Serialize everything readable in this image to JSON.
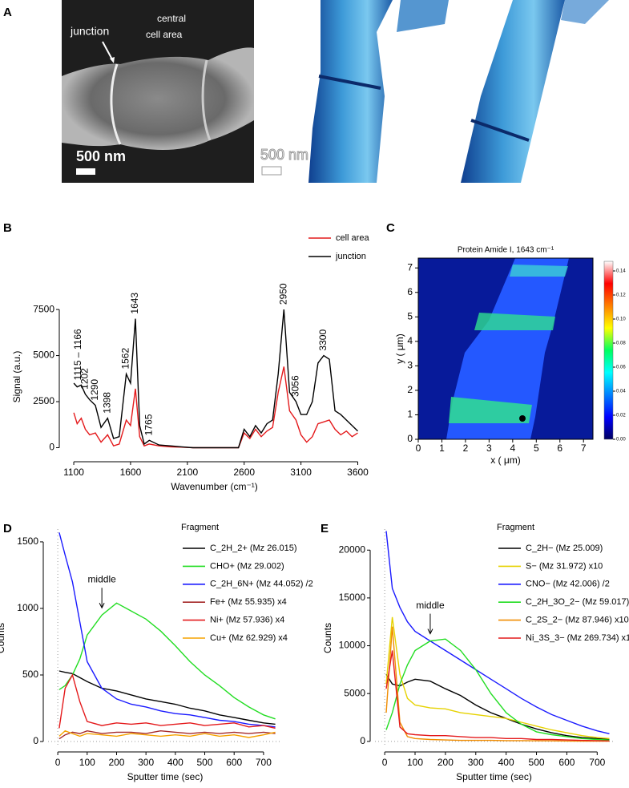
{
  "panel_labels": [
    "A",
    "B",
    "C",
    "D",
    "E"
  ],
  "panel_a": {
    "junction": "junction",
    "central_cell_area": [
      "central",
      "cell area"
    ],
    "scale_bar_1": "500 nm",
    "scale_bar_2": "500 nm"
  },
  "chart_data": [
    {
      "type": "line",
      "xlabel": "Wavenumber (cm⁻¹)",
      "ylabel": "Signal (a.u.)",
      "x": [
        1100,
        1130,
        1166,
        1202,
        1240,
        1290,
        1340,
        1398,
        1450,
        1500,
        1562,
        1600,
        1643,
        1680,
        1720,
        1765,
        1850,
        1950,
        2050,
        2150,
        2200,
        2550,
        2600,
        2650,
        2700,
        2750,
        2800,
        2850,
        2900,
        2950,
        3000,
        3056,
        3100,
        3150,
        3200,
        3250,
        3300,
        3350,
        3400,
        3450,
        3500,
        3550,
        3600
      ],
      "series": [
        {
          "name": "cell area",
          "color": "#e41a1c",
          "values": [
            1900,
            1300,
            1600,
            1000,
            700,
            800,
            300,
            700,
            100,
            200,
            1500,
            1200,
            3200,
            600,
            100,
            200,
            100,
            50,
            30,
            0,
            0,
            0,
            800,
            500,
            1000,
            600,
            900,
            1100,
            3000,
            4400,
            2000,
            1500,
            700,
            300,
            600,
            1300,
            1400,
            1500,
            1000,
            700,
            900,
            600,
            800
          ]
        },
        {
          "name": "junction",
          "color": "#000000",
          "values": [
            3500,
            3300,
            3400,
            2900,
            2600,
            2300,
            1100,
            1600,
            500,
            600,
            4000,
            3500,
            7000,
            1200,
            200,
            400,
            150,
            100,
            50,
            0,
            0,
            0,
            1000,
            600,
            1200,
            800,
            1300,
            1500,
            4000,
            7500,
            3000,
            2500,
            1800,
            1800,
            2500,
            4600,
            5000,
            4800,
            2000,
            1800,
            1500,
            1200,
            900
          ]
        }
      ],
      "xlim": [
        1015,
        3660
      ],
      "ylim": [
        -500,
        8200
      ],
      "xticks": [
        1100,
        1600,
        2100,
        2600,
        3100,
        3600
      ],
      "yticks": [
        0,
        2500,
        5000,
        7500
      ],
      "annotations": [
        {
          "text": "1115 – 1166",
          "x": 1140
        },
        {
          "text": "1202",
          "x": 1202
        },
        {
          "text": "1290",
          "x": 1290
        },
        {
          "text": "1398",
          "x": 1398
        },
        {
          "text": "1562",
          "x": 1562
        },
        {
          "text": "1643",
          "x": 1643
        },
        {
          "text": "1765",
          "x": 1765
        },
        {
          "text": "2950",
          "x": 2950
        },
        {
          "text": "3056",
          "x": 3056
        },
        {
          "text": "3300",
          "x": 3300
        }
      ]
    },
    {
      "type": "heatmap",
      "title": "Protein Amide I, 1643 cm⁻¹",
      "xlabel": "x ( μm)",
      "ylabel": "y ( μm)",
      "xlim": [
        0,
        7.4
      ],
      "ylim": [
        0,
        7.4
      ],
      "xticks": [
        0,
        1,
        2,
        3,
        4,
        5,
        6,
        7
      ],
      "yticks": [
        0,
        1,
        2,
        3,
        4,
        5,
        6,
        7
      ],
      "colormap": [
        "#000060",
        "#0000ff",
        "#0080ff",
        "#00ffff",
        "#00ff60",
        "#ffff00",
        "#ff8000",
        "#ff0000",
        "#ffffff"
      ],
      "clim": [
        0,
        0.148
      ],
      "cticks": [
        {
          "value": 0,
          "label": "0.00"
        },
        {
          "value": 0.02,
          "label": "0.02"
        },
        {
          "value": 0.04,
          "label": "0.04"
        },
        {
          "value": 0.06,
          "label": "0.06"
        },
        {
          "value": 0.08,
          "label": "0.08"
        },
        {
          "value": 0.1,
          "label": "0.10"
        },
        {
          "value": 0.12,
          "label": "0.12"
        },
        {
          "value": 0.14,
          "label": "0.14"
        }
      ]
    },
    {
      "type": "line",
      "xlabel": "Sputter time (sec)",
      "ylabel": "Counts",
      "legend_title": "Fragment",
      "x": [
        5,
        25,
        50,
        75,
        100,
        150,
        200,
        250,
        300,
        350,
        400,
        450,
        500,
        550,
        600,
        650,
        700,
        740
      ],
      "series": [
        {
          "name": "C_2H_2+ (Mz 26.015)",
          "color": "#000000",
          "values": [
            530,
            520,
            510,
            480,
            450,
            400,
            380,
            350,
            320,
            300,
            280,
            250,
            230,
            200,
            180,
            160,
            140,
            130
          ]
        },
        {
          "name": "CHO+ (Mz 29.002)",
          "color": "#22dd22",
          "values": [
            390,
            420,
            500,
            620,
            800,
            950,
            1040,
            980,
            920,
            830,
            720,
            600,
            500,
            420,
            330,
            260,
            200,
            170
          ]
        },
        {
          "name": "C_2H_6N+ (Mz 44.052) /2",
          "color": "#1a1aff",
          "values": [
            1570,
            1400,
            1200,
            900,
            600,
            400,
            320,
            280,
            260,
            230,
            210,
            200,
            180,
            160,
            150,
            130,
            120,
            110
          ]
        },
        {
          "name": "Fe+ (Mz 55.935) x4",
          "color": "#a52a2a",
          "values": [
            20,
            50,
            70,
            60,
            80,
            60,
            70,
            70,
            60,
            80,
            70,
            60,
            70,
            60,
            70,
            60,
            70,
            60
          ]
        },
        {
          "name": "Ni+ (Mz 57.936) x4",
          "color": "#e41a1c",
          "values": [
            100,
            400,
            500,
            300,
            150,
            120,
            140,
            130,
            140,
            120,
            130,
            140,
            120,
            130,
            140,
            110,
            120,
            100
          ]
        },
        {
          "name": "Cu+ (Mz 62.929) x4",
          "color": "#f5a300",
          "values": [
            40,
            80,
            60,
            40,
            60,
            50,
            40,
            60,
            50,
            40,
            50,
            40,
            60,
            40,
            50,
            30,
            50,
            70
          ]
        }
      ],
      "xlim": [
        -33,
        763
      ],
      "ylim": [
        -42,
        1596
      ],
      "xticks": [
        0,
        100,
        200,
        300,
        400,
        500,
        600,
        700
      ],
      "yticks": [
        0,
        500,
        1000,
        1500
      ],
      "hlines": [
        0
      ],
      "vlines": [
        0
      ],
      "annotations": [
        {
          "text": "middle",
          "x": 150,
          "arrow": true
        }
      ]
    },
    {
      "type": "line",
      "xlabel": "Sputter time (sec)",
      "ylabel": "Counts",
      "legend_title": "Fragment",
      "x": [
        5,
        25,
        50,
        75,
        100,
        150,
        200,
        250,
        300,
        350,
        400,
        450,
        500,
        550,
        600,
        650,
        700,
        740
      ],
      "series": [
        {
          "name": "C_2H− (Mz 25.009)",
          "color": "#000000",
          "values": [
            7000,
            6000,
            5800,
            6200,
            6500,
            6300,
            5500,
            4800,
            3800,
            3000,
            2400,
            1800,
            1300,
            900,
            600,
            400,
            300,
            200
          ]
        },
        {
          "name": "S− (Mz 31.972) x10",
          "color": "#e6d200",
          "values": [
            6000,
            13000,
            7000,
            4500,
            3800,
            3500,
            3400,
            3000,
            2800,
            2600,
            2400,
            2000,
            1600,
            1200,
            900,
            600,
            400,
            300
          ]
        },
        {
          "name": "CNO− (Mz 42.006) /2",
          "color": "#1a1aff",
          "values": [
            22000,
            16000,
            14000,
            12500,
            11500,
            10500,
            9500,
            8500,
            7500,
            6500,
            5500,
            4500,
            3600,
            2800,
            2200,
            1600,
            1100,
            800
          ]
        },
        {
          "name": "C_2H_3O_2− (Mz 59.017)",
          "color": "#22dd22",
          "values": [
            1200,
            3000,
            6000,
            8000,
            9500,
            10500,
            10700,
            9500,
            7500,
            5000,
            3000,
            1800,
            1000,
            700,
            500,
            300,
            200,
            150
          ]
        },
        {
          "name": "C_2S_2− (Mz 87.946) x10",
          "color": "#f08c00",
          "values": [
            3000,
            12000,
            2000,
            500,
            300,
            200,
            150,
            100,
            100,
            100,
            80,
            80,
            60,
            50,
            40,
            30,
            30,
            30
          ]
        },
        {
          "name": "Ni_3S_3− (Mz 269.734) x10",
          "color": "#e41a1c",
          "values": [
            5500,
            9500,
            1500,
            800,
            700,
            600,
            600,
            500,
            400,
            400,
            300,
            300,
            200,
            200,
            150,
            100,
            80,
            50
          ]
        }
      ],
      "xlim": [
        -32,
        752
      ],
      "ylim": [
        -600,
        22200
      ],
      "xticks": [
        0,
        100,
        200,
        300,
        400,
        500,
        600,
        700
      ],
      "yticks": [
        0,
        5000,
        10000,
        15000,
        20000
      ],
      "hlines": [
        0
      ],
      "vlines": [
        0
      ],
      "annotations": [
        {
          "text": "middle",
          "x": 150,
          "arrow": true
        }
      ]
    }
  ]
}
